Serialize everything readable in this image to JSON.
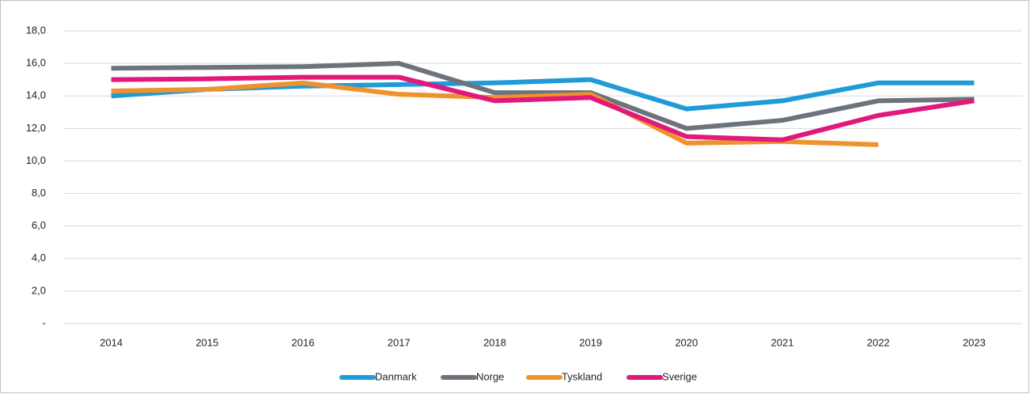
{
  "chart_data": {
    "type": "line",
    "categories": [
      "2014",
      "2015",
      "2016",
      "2017",
      "2018",
      "2019",
      "2020",
      "2021",
      "2022",
      "2023"
    ],
    "series": [
      {
        "name": "Danmark",
        "color": "#1f9bd7",
        "values": [
          14.0,
          14.4,
          14.6,
          14.7,
          14.8,
          15.0,
          13.2,
          13.7,
          14.8,
          14.8
        ]
      },
      {
        "name": "Norge",
        "color": "#6d737a",
        "values": [
          15.7,
          15.75,
          15.8,
          16.0,
          14.2,
          14.2,
          12.0,
          12.5,
          13.7,
          13.8
        ]
      },
      {
        "name": "Tyskland",
        "color": "#f0922b",
        "values": [
          14.3,
          14.4,
          14.8,
          14.1,
          13.9,
          14.1,
          11.1,
          11.2,
          11.0,
          null
        ]
      },
      {
        "name": "Sverige",
        "color": "#e0197b",
        "values": [
          15.0,
          15.05,
          15.15,
          15.15,
          13.7,
          13.9,
          11.5,
          11.3,
          12.8,
          13.7
        ]
      }
    ],
    "ylim": [
      0,
      18
    ],
    "yticks": [
      {
        "value": 0,
        "label": "-"
      },
      {
        "value": 2,
        "label": "2,0"
      },
      {
        "value": 4,
        "label": "4,0"
      },
      {
        "value": 6,
        "label": "6,0"
      },
      {
        "value": 8,
        "label": "8,0"
      },
      {
        "value": 10,
        "label": "10,0"
      },
      {
        "value": 12,
        "label": "12,0"
      },
      {
        "value": 14,
        "label": "14,0"
      },
      {
        "value": 16,
        "label": "16,0"
      },
      {
        "value": 18,
        "label": "18,0"
      }
    ],
    "grid": true,
    "legend": "bottom"
  }
}
